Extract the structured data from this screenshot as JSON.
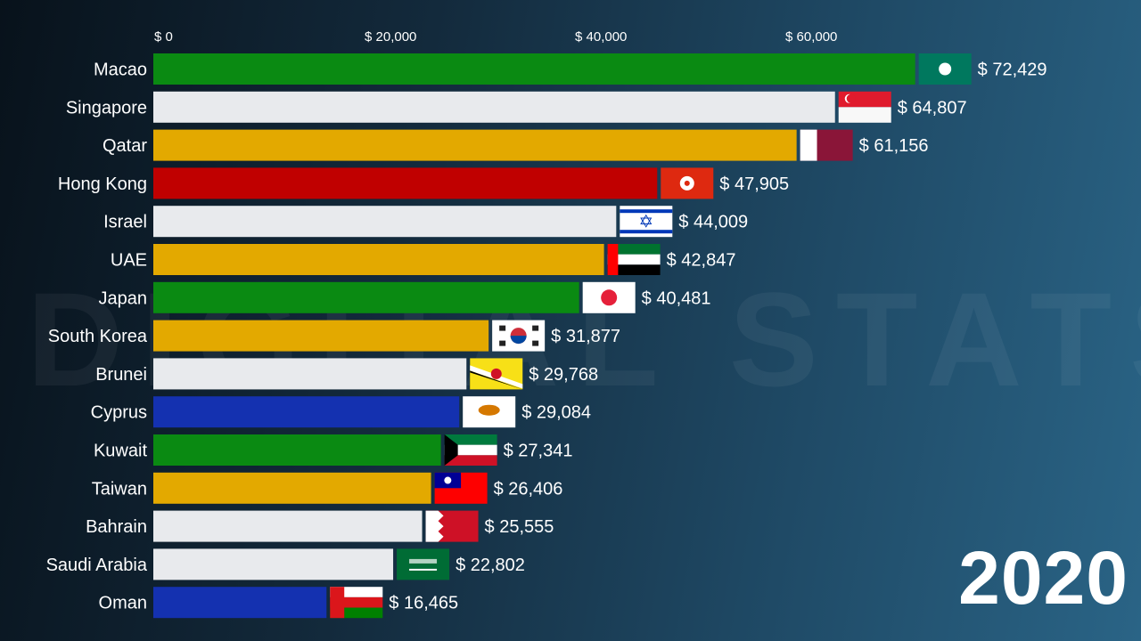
{
  "chart_data": {
    "type": "bar",
    "orientation": "horizontal",
    "year": "2020",
    "xlim": [
      0,
      72429
    ],
    "ticks": [
      0,
      20000,
      40000,
      60000
    ],
    "tick_labels": [
      "$ 0",
      "$ 20,000",
      "$ 40,000",
      "$ 60,000"
    ],
    "grid": false,
    "categories": [
      "Macao",
      "Singapore",
      "Qatar",
      "Hong Kong",
      "Israel",
      "UAE",
      "Japan",
      "South Korea",
      "Brunei",
      "Cyprus",
      "Kuwait",
      "Taiwan",
      "Bahrain",
      "Saudi Arabia",
      "Oman"
    ],
    "values": [
      72429,
      64807,
      61156,
      47905,
      44009,
      42847,
      40481,
      31877,
      29768,
      29084,
      27341,
      26406,
      25555,
      22802,
      16465
    ],
    "value_labels": [
      "$ 72,429",
      "$ 64,807",
      "$ 61,156",
      "$ 47,905",
      "$ 44,009",
      "$ 42,847",
      "$ 40,481",
      "$ 31,877",
      "$ 29,768",
      "$ 29,084",
      "$ 27,341",
      "$ 26,406",
      "$ 25,555",
      "$ 22,802",
      "$ 16,465"
    ],
    "colors": [
      "#0a8a12",
      "#e8eaed",
      "#e3a900",
      "#c00000",
      "#e8eaed",
      "#e3a900",
      "#0a8a12",
      "#e3a900",
      "#e8eaed",
      "#1431b0",
      "#0a8a12",
      "#e3a900",
      "#e8eaed",
      "#e8eaed",
      "#1431b0"
    ],
    "flags": [
      "flag-macao-icon",
      "flag-singapore-icon",
      "flag-qatar-icon",
      "flag-hong-kong-icon",
      "flag-israel-icon",
      "flag-uae-icon",
      "flag-japan-icon",
      "flag-south-korea-icon",
      "flag-brunei-icon",
      "flag-cyprus-icon",
      "flag-kuwait-icon",
      "flag-taiwan-icon",
      "flag-bahrain-icon",
      "flag-saudi-arabia-icon",
      "flag-oman-icon"
    ]
  }
}
